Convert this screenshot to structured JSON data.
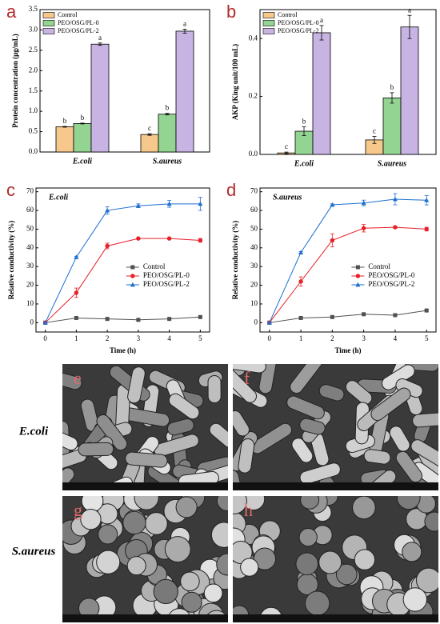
{
  "chart_data": [
    {
      "type": "bar",
      "panel_label": "a",
      "ylabel": "Protein concentration (μg/mL)",
      "categories": [
        "E.coli",
        "S.aureus"
      ],
      "ylim": [
        0,
        3.5
      ],
      "yticks": [
        {
          "value": 0,
          "label": "0.0"
        },
        {
          "value": 0.5,
          "label": "0.5"
        },
        {
          "value": 1,
          "label": "1.0"
        },
        {
          "value": 1.5,
          "label": "1.5"
        },
        {
          "value": 2,
          "label": "2.0"
        },
        {
          "value": 2.5,
          "label": "2.5"
        },
        {
          "value": 3,
          "label": "3.0"
        },
        {
          "value": 3.5,
          "label": "3.5"
        }
      ],
      "legend": "upper left",
      "series": [
        {
          "name": "Control",
          "color": "#f7c88c",
          "values": [
            0.62,
            0.43
          ],
          "errors": [
            0.01,
            0.02
          ],
          "significance": [
            "b",
            "c"
          ]
        },
        {
          "name": "PEO/OSG/PL-0",
          "color": "#93d493",
          "values": [
            0.7,
            0.93
          ],
          "errors": [
            0.01,
            0.02
          ],
          "significance": [
            "b",
            "b"
          ]
        },
        {
          "name": "PEO/OSG/PL-2",
          "color": "#c8b4e2",
          "values": [
            2.65,
            2.97
          ],
          "errors": [
            0.03,
            0.05
          ],
          "significance": [
            "a",
            "a"
          ]
        }
      ]
    },
    {
      "type": "bar",
      "panel_label": "b",
      "ylabel": "AKP (King unit/100 mL)",
      "categories": [
        "E.coli",
        "S.aureus"
      ],
      "ylim": [
        0,
        0.5
      ],
      "yticks": [
        {
          "value": 0,
          "label": "0.0"
        },
        {
          "value": 0.2,
          "label": "0.2"
        },
        {
          "value": 0.4,
          "label": "0.4"
        }
      ],
      "legend": "upper left",
      "series": [
        {
          "name": "Control",
          "color": "#f7c88c",
          "values": [
            0.005,
            0.05
          ],
          "errors": [
            0.003,
            0.012
          ],
          "significance": [
            "c",
            "c"
          ]
        },
        {
          "name": "PEO/OSG/PL-0",
          "color": "#93d493",
          "values": [
            0.08,
            0.195
          ],
          "errors": [
            0.015,
            0.018
          ],
          "significance": [
            "b",
            "b"
          ]
        },
        {
          "name": "PEO/OSG/PL-2",
          "color": "#c8b4e2",
          "values": [
            0.42,
            0.44
          ],
          "errors": [
            0.025,
            0.04
          ],
          "significance": [
            "a",
            "a"
          ]
        }
      ]
    },
    {
      "type": "line",
      "panel_label": "c",
      "annotation": "E.coli",
      "xlabel": "Time (h)",
      "ylabel": "Relative conductivity (%)",
      "x": [
        0,
        1,
        2,
        3,
        4,
        5
      ],
      "xlim": [
        -0.3,
        5.3
      ],
      "xticks": [
        0,
        1,
        2,
        3,
        4,
        5
      ],
      "ylim": [
        -5,
        72
      ],
      "yticks": [
        0,
        10,
        20,
        30,
        40,
        50,
        60,
        70
      ],
      "legend": "center right",
      "series": [
        {
          "name": "Control",
          "color": "#505050",
          "marker": "square",
          "values": [
            0,
            2.5,
            2,
            1.5,
            2,
            3
          ],
          "errors": [
            0,
            0.3,
            0.3,
            0.3,
            0.3,
            0.5
          ]
        },
        {
          "name": "PEO/OSG/PL-0",
          "color": "#e8202a",
          "marker": "circle",
          "values": [
            0,
            16,
            41,
            45,
            45,
            44
          ],
          "errors": [
            0,
            2.5,
            1.5,
            0.5,
            0.5,
            1
          ]
        },
        {
          "name": "PEO/OSG/PL-2",
          "color": "#1f6fd0",
          "marker": "triangle",
          "values": [
            0,
            35,
            60,
            62.5,
            63.5,
            63.5
          ],
          "errors": [
            0,
            0.5,
            2,
            1,
            1.8,
            3.5
          ]
        }
      ]
    },
    {
      "type": "line",
      "panel_label": "d",
      "annotation": "S.aureus",
      "xlabel": "Time (h)",
      "ylabel": "Relative conductivity (%)",
      "x": [
        0,
        1,
        2,
        3,
        4,
        5
      ],
      "xlim": [
        -0.3,
        5.3
      ],
      "xticks": [
        0,
        1,
        2,
        3,
        4,
        5
      ],
      "ylim": [
        -5,
        72
      ],
      "yticks": [
        0,
        10,
        20,
        30,
        40,
        50,
        60,
        70
      ],
      "legend": "center right",
      "series": [
        {
          "name": "Control",
          "color": "#505050",
          "marker": "square",
          "values": [
            0,
            2.5,
            3,
            4.5,
            4,
            6.5
          ],
          "errors": [
            0,
            0.3,
            0.3,
            0.3,
            0.3,
            0.5
          ]
        },
        {
          "name": "PEO/OSG/PL-0",
          "color": "#e8202a",
          "marker": "circle",
          "values": [
            0,
            22,
            44,
            50.5,
            51,
            50
          ],
          "errors": [
            0,
            2.5,
            3.5,
            2,
            0.5,
            1
          ]
        },
        {
          "name": "PEO/OSG/PL-2",
          "color": "#1f6fd0",
          "marker": "triangle",
          "values": [
            0,
            37.5,
            63,
            64,
            66,
            65.5
          ],
          "errors": [
            0,
            0.5,
            0.5,
            1.5,
            3,
            2.5
          ]
        }
      ]
    }
  ],
  "micrographs": {
    "row_labels": [
      "E.coli",
      "S.aureus"
    ],
    "panels": [
      "e",
      "f",
      "g",
      "h"
    ]
  }
}
